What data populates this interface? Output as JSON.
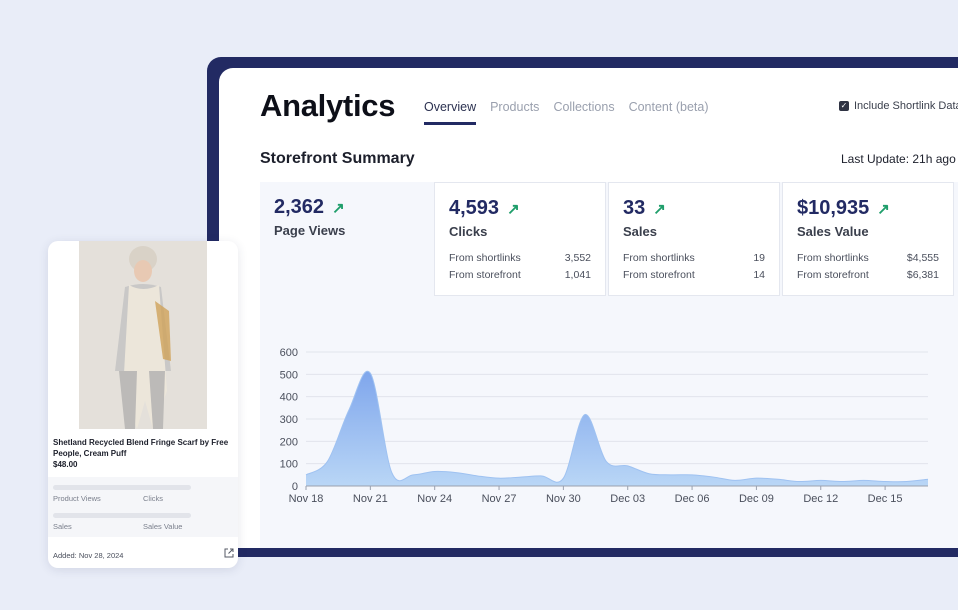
{
  "header": {
    "title": "Analytics",
    "tabs": [
      {
        "label": "Overview",
        "active": true
      },
      {
        "label": "Products",
        "active": false
      },
      {
        "label": "Collections",
        "active": false
      },
      {
        "label": "Content (beta)",
        "active": false
      }
    ],
    "include_shortlink": {
      "label": "Include Shortlink Data",
      "checked": true
    }
  },
  "summary": {
    "title": "Storefront Summary",
    "last_update": "Last Update: 21h ago"
  },
  "stats": [
    {
      "value": "2,362",
      "label": "Page Views",
      "trend_icon": "arrow-up-right-icon"
    },
    {
      "value": "4,593",
      "label": "Clicks",
      "trend_icon": "arrow-up-right-icon",
      "breakdown": [
        {
          "label": "From shortlinks",
          "value": "3,552"
        },
        {
          "label": "From storefront",
          "value": "1,041"
        }
      ]
    },
    {
      "value": "33",
      "label": "Sales",
      "trend_icon": "arrow-up-right-icon",
      "breakdown": [
        {
          "label": "From shortlinks",
          "value": "19"
        },
        {
          "label": "From storefront",
          "value": "14"
        }
      ]
    },
    {
      "value": "$10,935",
      "label": "Sales Value",
      "trend_icon": "arrow-up-right-icon",
      "breakdown": [
        {
          "label": "From shortlinks",
          "value": "$4,555"
        },
        {
          "label": "From storefront",
          "value": "$6,381"
        }
      ]
    }
  ],
  "chart_data": {
    "type": "area",
    "x": [
      "Nov 18",
      "Nov 19",
      "Nov 20",
      "Nov 21",
      "Nov 22",
      "Nov 23",
      "Nov 24",
      "Nov 25",
      "Nov 26",
      "Nov 27",
      "Nov 28",
      "Nov 29",
      "Nov 30",
      "Dec 01",
      "Dec 02",
      "Dec 03",
      "Dec 04",
      "Dec 05",
      "Dec 06",
      "Dec 07",
      "Dec 08",
      "Dec 09",
      "Dec 10",
      "Dec 11",
      "Dec 12",
      "Dec 13",
      "Dec 14",
      "Dec 15",
      "Dec 16",
      "Dec 17"
    ],
    "values": [
      50,
      110,
      340,
      505,
      60,
      50,
      65,
      60,
      45,
      35,
      40,
      45,
      35,
      320,
      110,
      90,
      55,
      50,
      50,
      40,
      25,
      35,
      30,
      20,
      25,
      20,
      25,
      20,
      20,
      30
    ],
    "xticks": [
      "Nov 18",
      "Nov 21",
      "Nov 24",
      "Nov 27",
      "Nov 30",
      "Dec 03",
      "Dec 06",
      "Dec 09",
      "Dec 12",
      "Dec 15"
    ],
    "yticks": [
      0,
      100,
      200,
      300,
      400,
      500,
      600
    ],
    "ylim": [
      0,
      600
    ],
    "grid": true,
    "fill_color_top": "#7fa6ec",
    "fill_color_bottom": "#b9d6f6"
  },
  "product_card": {
    "name": "Shetland Recycled Blend Fringe Scarf by Free People, Cream Puff",
    "price": "$48.00",
    "metrics": [
      "Product Views",
      "Clicks",
      "Sales",
      "Sales Value"
    ],
    "added": "Added: Nov 28, 2024",
    "link_icon": "external-link-icon"
  }
}
